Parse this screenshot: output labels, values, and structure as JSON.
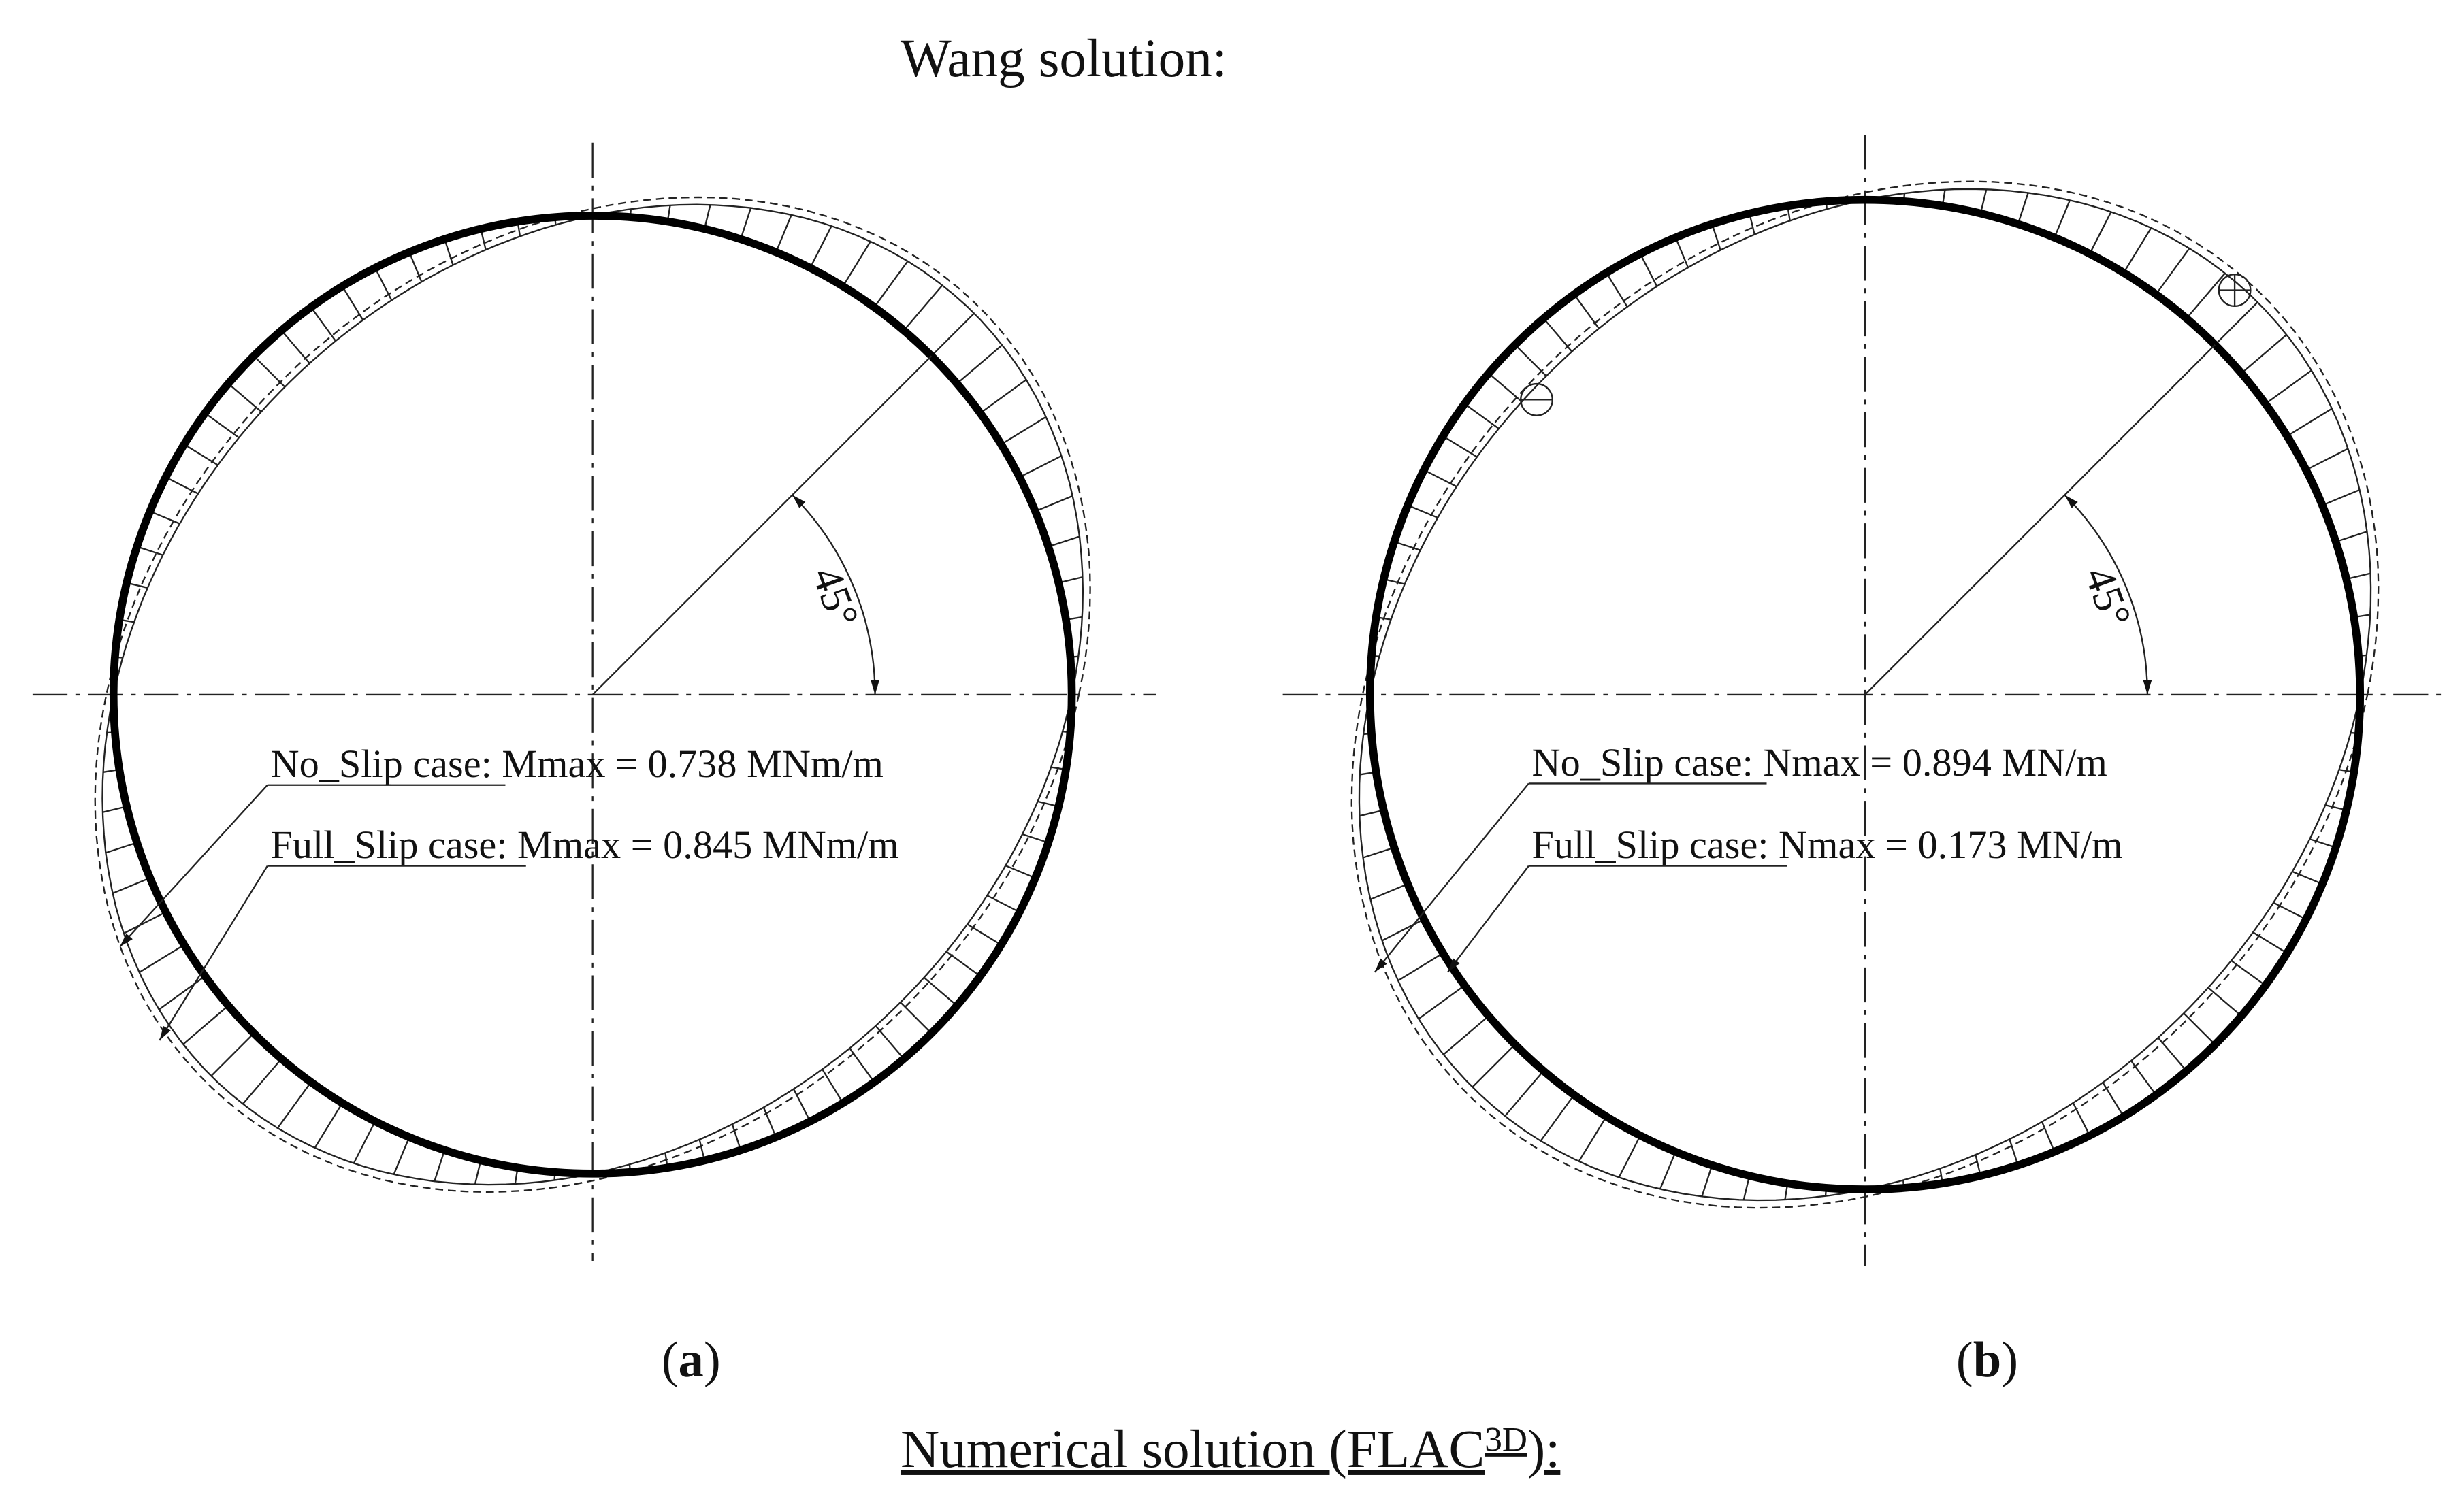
{
  "title": "Wang solution:",
  "panels": [
    {
      "label": [
        "(",
        "a",
        ")"
      ],
      "angle": "45°",
      "annotations": [
        "No_Slip case: Mmax =  0.738 MNm/m",
        "Full_Slip case: Mmax = 0.845 MNm/m"
      ]
    },
    {
      "label": [
        "(",
        "b",
        ")"
      ],
      "angle": "45°",
      "annotations": [
        "No_Slip case: Nmax = 0.894 MN/m",
        "Full_Slip case: Nmax = 0.173 MN/m"
      ]
    }
  ],
  "footer": {
    "text": "Numerical solution (FLAC",
    "superscript": "3D",
    "end": "):"
  }
}
